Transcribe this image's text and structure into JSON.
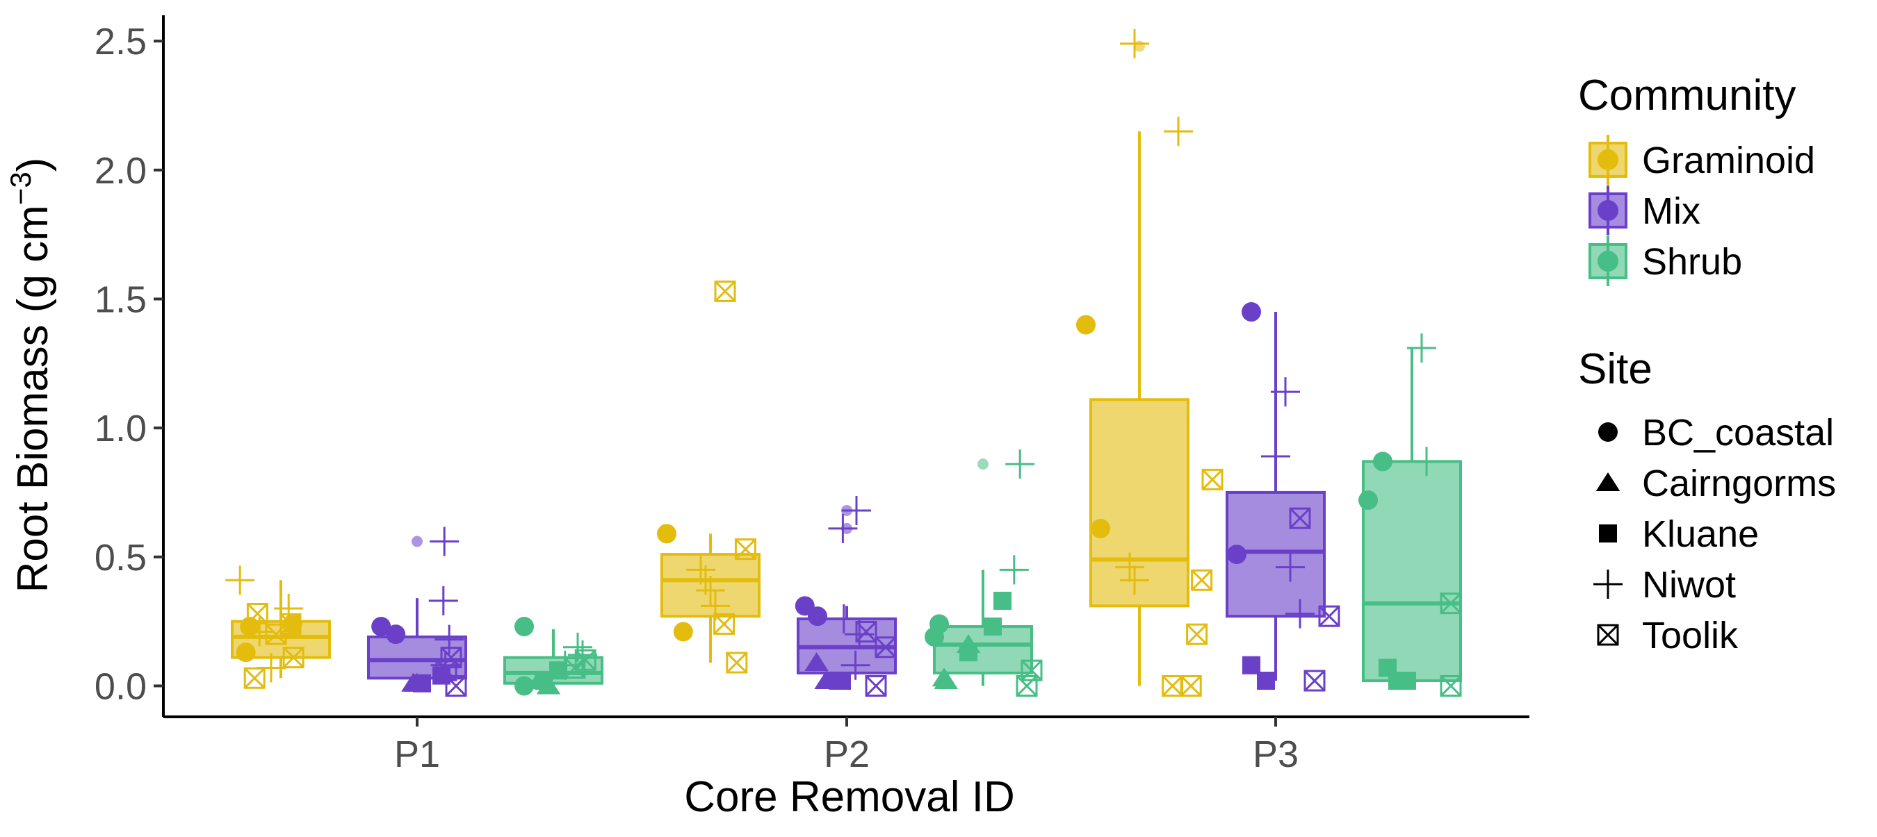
{
  "chart_data": {
    "type": "boxplot",
    "xlabel": "Core Removal ID",
    "ylabel": "Root Biomass (g cm",
    "ylabel_sup": "−3",
    "ylabel_close": ")",
    "categories": [
      "P1",
      "P2",
      "P3"
    ],
    "ylim": [
      -0.12,
      2.6
    ],
    "yticks": [
      {
        "value": 0.0,
        "label": "0.0"
      },
      {
        "value": 0.5,
        "label": "0.5"
      },
      {
        "value": 1.0,
        "label": "1.0"
      },
      {
        "value": 1.5,
        "label": "1.5"
      },
      {
        "value": 2.0,
        "label": "2.0"
      },
      {
        "value": 2.5,
        "label": "2.5"
      }
    ],
    "grid": false,
    "legend": {
      "placement": "right",
      "community_title": "Community",
      "site_title": "Site",
      "communities": [
        {
          "name": "Graminoid",
          "color": "#E3BC0D"
        },
        {
          "name": "Mix",
          "color": "#6A40C9"
        },
        {
          "name": "Shrub",
          "color": "#47BE85"
        }
      ],
      "sites": [
        {
          "name": "BC_coastal",
          "shape": "circle"
        },
        {
          "name": "Cairngorms",
          "shape": "triangle"
        },
        {
          "name": "Kluane",
          "shape": "square"
        },
        {
          "name": "Niwot",
          "shape": "plus"
        },
        {
          "name": "Toolik",
          "shape": "boxcross"
        }
      ]
    },
    "boxes": [
      {
        "category": "P1",
        "community": "Graminoid",
        "q1": 0.11,
        "median": 0.19,
        "q3": 0.25,
        "whisker_low": 0.03,
        "whisker_high": 0.41
      },
      {
        "category": "P1",
        "community": "Mix",
        "q1": 0.03,
        "median": 0.1,
        "q3": 0.19,
        "whisker_low": 0.0,
        "whisker_high": 0.34
      },
      {
        "category": "P1",
        "community": "Shrub",
        "q1": 0.01,
        "median": 0.05,
        "q3": 0.11,
        "whisker_low": 0.0,
        "whisker_high": 0.22
      },
      {
        "category": "P2",
        "community": "Graminoid",
        "q1": 0.27,
        "median": 0.41,
        "q3": 0.51,
        "whisker_low": 0.09,
        "whisker_high": 0.59
      },
      {
        "category": "P2",
        "community": "Mix",
        "q1": 0.05,
        "median": 0.15,
        "q3": 0.26,
        "whisker_low": 0.0,
        "whisker_high": 0.31
      },
      {
        "category": "P2",
        "community": "Shrub",
        "q1": 0.05,
        "median": 0.16,
        "q3": 0.23,
        "whisker_low": 0.0,
        "whisker_high": 0.45
      },
      {
        "category": "P3",
        "community": "Graminoid",
        "q1": 0.31,
        "median": 0.49,
        "q3": 1.11,
        "whisker_low": 0.0,
        "whisker_high": 2.15
      },
      {
        "category": "P3",
        "community": "Mix",
        "q1": 0.27,
        "median": 0.52,
        "q3": 0.75,
        "whisker_low": 0.02,
        "whisker_high": 1.45
      },
      {
        "category": "P3",
        "community": "Shrub",
        "q1": 0.02,
        "median": 0.32,
        "q3": 0.87,
        "whisker_low": 0.0,
        "whisker_high": 1.31
      }
    ],
    "outliers": [
      {
        "category": "P2",
        "community": "Mix",
        "y": 0.61
      },
      {
        "category": "P2",
        "community": "Mix",
        "y": 0.68
      },
      {
        "category": "P2",
        "community": "Shrub",
        "y": 0.86
      },
      {
        "category": "P1",
        "community": "Mix",
        "y": 0.56
      },
      {
        "category": "P3",
        "community": "Graminoid",
        "y": 2.48
      }
    ],
    "points": [
      {
        "category": "P1",
        "community": "Graminoid",
        "site": "BC_coastal",
        "y": 0.13,
        "jitter": -0.36
      },
      {
        "category": "P1",
        "community": "Graminoid",
        "site": "BC_coastal",
        "y": 0.23,
        "jitter": -0.32
      },
      {
        "category": "P1",
        "community": "Graminoid",
        "site": "BC_coastal",
        "y": 0.24,
        "jitter": 0.12
      },
      {
        "category": "P1",
        "community": "Graminoid",
        "site": "Niwot",
        "y": 0.41,
        "jitter": -0.42
      },
      {
        "category": "P1",
        "community": "Graminoid",
        "site": "Niwot",
        "y": 0.21,
        "jitter": -0.22
      },
      {
        "category": "P1",
        "community": "Graminoid",
        "site": "Niwot",
        "y": 0.07,
        "jitter": -0.1
      },
      {
        "category": "P1",
        "community": "Graminoid",
        "site": "Niwot",
        "y": 0.3,
        "jitter": 0.08
      },
      {
        "category": "P1",
        "community": "Graminoid",
        "site": "Toolik",
        "y": 0.03,
        "jitter": -0.27
      },
      {
        "category": "P1",
        "community": "Graminoid",
        "site": "Toolik",
        "y": 0.28,
        "jitter": -0.24
      },
      {
        "category": "P1",
        "community": "Graminoid",
        "site": "Toolik",
        "y": 0.2,
        "jitter": -0.05
      },
      {
        "category": "P1",
        "community": "Graminoid",
        "site": "Toolik",
        "y": 0.24,
        "jitter": 0.1
      },
      {
        "category": "P1",
        "community": "Graminoid",
        "site": "Toolik",
        "y": 0.11,
        "jitter": 0.13
      },
      {
        "category": "P1",
        "community": "Mix",
        "site": "BC_coastal",
        "y": 0.23,
        "jitter": -0.37
      },
      {
        "category": "P1",
        "community": "Mix",
        "site": "BC_coastal",
        "y": 0.2,
        "jitter": -0.22
      },
      {
        "category": "P1",
        "community": "Mix",
        "site": "Cairngorms",
        "y": 0.01,
        "jitter": -0.04
      },
      {
        "category": "P1",
        "community": "Mix",
        "site": "Cairngorms",
        "y": 0.01,
        "jitter": 0.0
      },
      {
        "category": "P1",
        "community": "Mix",
        "site": "Kluane",
        "y": 0.01,
        "jitter": 0.05
      },
      {
        "category": "P1",
        "community": "Mix",
        "site": "Kluane",
        "y": 0.04,
        "jitter": 0.25
      },
      {
        "category": "P1",
        "community": "Mix",
        "site": "Niwot",
        "y": 0.56,
        "jitter": 0.28
      },
      {
        "category": "P1",
        "community": "Mix",
        "site": "Niwot",
        "y": 0.33,
        "jitter": 0.27
      },
      {
        "category": "P1",
        "community": "Mix",
        "site": "Niwot",
        "y": 0.18,
        "jitter": 0.33
      },
      {
        "category": "P1",
        "community": "Mix",
        "site": "Niwot",
        "y": 0.08,
        "jitter": 0.29
      },
      {
        "category": "P1",
        "community": "Mix",
        "site": "Toolik",
        "y": 0.11,
        "jitter": 0.35
      },
      {
        "category": "P1",
        "community": "Mix",
        "site": "Toolik",
        "y": 0.06,
        "jitter": 0.3
      },
      {
        "category": "P1",
        "community": "Mix",
        "site": "Toolik",
        "y": 0.0,
        "jitter": 0.4
      },
      {
        "category": "P1",
        "community": "Shrub",
        "site": "BC_coastal",
        "y": 0.23,
        "jitter": -0.3
      },
      {
        "category": "P1",
        "community": "Shrub",
        "site": "BC_coastal",
        "y": 0.0,
        "jitter": -0.3
      },
      {
        "category": "P1",
        "community": "Shrub",
        "site": "Cairngorms",
        "y": 0.02,
        "jitter": -0.15
      },
      {
        "category": "P1",
        "community": "Shrub",
        "site": "Cairngorms",
        "y": 0.0,
        "jitter": -0.05
      },
      {
        "category": "P1",
        "community": "Shrub",
        "site": "Kluane",
        "y": 0.02,
        "jitter": -0.1
      },
      {
        "category": "P1",
        "community": "Shrub",
        "site": "Kluane",
        "y": 0.06,
        "jitter": 0.05
      },
      {
        "category": "P1",
        "community": "Shrub",
        "site": "Niwot",
        "y": 0.15,
        "jitter": 0.25
      },
      {
        "category": "P1",
        "community": "Shrub",
        "site": "Niwot",
        "y": 0.12,
        "jitter": 0.3
      },
      {
        "category": "P1",
        "community": "Shrub",
        "site": "Niwot",
        "y": 0.08,
        "jitter": 0.12
      },
      {
        "category": "P1",
        "community": "Shrub",
        "site": "Toolik",
        "y": 0.1,
        "jitter": 0.33
      },
      {
        "category": "P1",
        "community": "Shrub",
        "site": "Toolik",
        "y": 0.07,
        "jitter": 0.22
      },
      {
        "category": "P2",
        "community": "Graminoid",
        "site": "BC_coastal",
        "y": 0.59,
        "jitter": -0.45
      },
      {
        "category": "P2",
        "community": "Graminoid",
        "site": "BC_coastal",
        "y": 0.21,
        "jitter": -0.28
      },
      {
        "category": "P2",
        "community": "Graminoid",
        "site": "Niwot",
        "y": 0.45,
        "jitter": -0.1
      },
      {
        "category": "P2",
        "community": "Graminoid",
        "site": "Niwot",
        "y": 0.41,
        "jitter": -0.05
      },
      {
        "category": "P2",
        "community": "Graminoid",
        "site": "Niwot",
        "y": 0.37,
        "jitter": 0.0
      },
      {
        "category": "P2",
        "community": "Graminoid",
        "site": "Niwot",
        "y": 0.31,
        "jitter": 0.05
      },
      {
        "category": "P2",
        "community": "Graminoid",
        "site": "Toolik",
        "y": 1.53,
        "jitter": 0.15
      },
      {
        "category": "P2",
        "community": "Graminoid",
        "site": "Toolik",
        "y": 0.53,
        "jitter": 0.36
      },
      {
        "category": "P2",
        "community": "Graminoid",
        "site": "Toolik",
        "y": 0.24,
        "jitter": 0.14
      },
      {
        "category": "P2",
        "community": "Graminoid",
        "site": "Toolik",
        "y": 0.09,
        "jitter": 0.27
      },
      {
        "category": "P2",
        "community": "Mix",
        "site": "BC_coastal",
        "y": 0.31,
        "jitter": -0.43
      },
      {
        "category": "P2",
        "community": "Mix",
        "site": "BC_coastal",
        "y": 0.27,
        "jitter": -0.3
      },
      {
        "category": "P2",
        "community": "Mix",
        "site": "Cairngorms",
        "y": 0.09,
        "jitter": -0.31
      },
      {
        "category": "P2",
        "community": "Mix",
        "site": "Cairngorms",
        "y": 0.02,
        "jitter": -0.21
      },
      {
        "category": "P2",
        "community": "Mix",
        "site": "Kluane",
        "y": 0.02,
        "jitter": -0.05
      },
      {
        "category": "P2",
        "community": "Mix",
        "site": "Kluane",
        "y": 0.02,
        "jitter": -0.09
      },
      {
        "category": "P2",
        "community": "Mix",
        "site": "Niwot",
        "y": 0.68,
        "jitter": 0.1
      },
      {
        "category": "P2",
        "community": "Mix",
        "site": "Niwot",
        "y": 0.61,
        "jitter": -0.04
      },
      {
        "category": "P2",
        "community": "Mix",
        "site": "Niwot",
        "y": 0.26,
        "jitter": -0.03
      },
      {
        "category": "P2",
        "community": "Mix",
        "site": "Niwot",
        "y": 0.2,
        "jitter": 0.13
      },
      {
        "category": "P2",
        "community": "Mix",
        "site": "Niwot",
        "y": 0.08,
        "jitter": 0.09
      },
      {
        "category": "P2",
        "community": "Mix",
        "site": "Toolik",
        "y": 0.21,
        "jitter": 0.2
      },
      {
        "category": "P2",
        "community": "Mix",
        "site": "Toolik",
        "y": 0.15,
        "jitter": 0.4
      },
      {
        "category": "P2",
        "community": "Mix",
        "site": "Toolik",
        "y": 0.0,
        "jitter": 0.3
      },
      {
        "category": "P2",
        "community": "Shrub",
        "site": "BC_coastal",
        "y": 0.24,
        "jitter": -0.45
      },
      {
        "category": "P2",
        "community": "Shrub",
        "site": "BC_coastal",
        "y": 0.19,
        "jitter": -0.5
      },
      {
        "category": "P2",
        "community": "Shrub",
        "site": "Cairngorms",
        "y": 0.03,
        "jitter": -0.4
      },
      {
        "category": "P2",
        "community": "Shrub",
        "site": "Cairngorms",
        "y": 0.02,
        "jitter": -0.38
      },
      {
        "category": "P2",
        "community": "Shrub",
        "site": "Cairngorms",
        "y": 0.16,
        "jitter": -0.15
      },
      {
        "category": "P2",
        "community": "Shrub",
        "site": "Kluane",
        "y": 0.33,
        "jitter": 0.2
      },
      {
        "category": "P2",
        "community": "Shrub",
        "site": "Kluane",
        "y": 0.23,
        "jitter": 0.1
      },
      {
        "category": "P2",
        "community": "Shrub",
        "site": "Kluane",
        "y": 0.13,
        "jitter": -0.15
      },
      {
        "category": "P2",
        "community": "Shrub",
        "site": "Niwot",
        "y": 0.86,
        "jitter": 0.38
      },
      {
        "category": "P2",
        "community": "Shrub",
        "site": "Niwot",
        "y": 0.45,
        "jitter": 0.32
      },
      {
        "category": "P2",
        "community": "Shrub",
        "site": "Toolik",
        "y": 0.06,
        "jitter": 0.5
      },
      {
        "category": "P2",
        "community": "Shrub",
        "site": "Toolik",
        "y": 0.0,
        "jitter": 0.45
      },
      {
        "category": "P3",
        "community": "Graminoid",
        "site": "BC_coastal",
        "y": 1.4,
        "jitter": -0.55
      },
      {
        "category": "P3",
        "community": "Graminoid",
        "site": "BC_coastal",
        "y": 0.61,
        "jitter": -0.4
      },
      {
        "category": "P3",
        "community": "Graminoid",
        "site": "Niwot",
        "y": 2.49,
        "jitter": -0.05
      },
      {
        "category": "P3",
        "community": "Graminoid",
        "site": "Niwot",
        "y": 2.15,
        "jitter": 0.4
      },
      {
        "category": "P3",
        "community": "Graminoid",
        "site": "Niwot",
        "y": 0.46,
        "jitter": -0.1
      },
      {
        "category": "P3",
        "community": "Graminoid",
        "site": "Niwot",
        "y": 0.41,
        "jitter": -0.05
      },
      {
        "category": "P3",
        "community": "Graminoid",
        "site": "Toolik",
        "y": 0.8,
        "jitter": 0.75
      },
      {
        "category": "P3",
        "community": "Graminoid",
        "site": "Toolik",
        "y": 0.41,
        "jitter": 0.64
      },
      {
        "category": "P3",
        "community": "Graminoid",
        "site": "Toolik",
        "y": 0.2,
        "jitter": 0.59
      },
      {
        "category": "P3",
        "community": "Graminoid",
        "site": "Toolik",
        "y": 0.0,
        "jitter": 0.34
      },
      {
        "category": "P3",
        "community": "Graminoid",
        "site": "Toolik",
        "y": 0.0,
        "jitter": 0.53
      },
      {
        "category": "P3",
        "community": "Mix",
        "site": "BC_coastal",
        "y": 1.45,
        "jitter": -0.25
      },
      {
        "category": "P3",
        "community": "Mix",
        "site": "BC_coastal",
        "y": 0.51,
        "jitter": -0.4
      },
      {
        "category": "P3",
        "community": "Mix",
        "site": "Kluane",
        "y": 0.08,
        "jitter": -0.25
      },
      {
        "category": "P3",
        "community": "Mix",
        "site": "Kluane",
        "y": 0.02,
        "jitter": -0.1
      },
      {
        "category": "P3",
        "community": "Mix",
        "site": "Niwot",
        "y": 1.14,
        "jitter": 0.1
      },
      {
        "category": "P3",
        "community": "Mix",
        "site": "Niwot",
        "y": 0.89,
        "jitter": 0.0
      },
      {
        "category": "P3",
        "community": "Mix",
        "site": "Niwot",
        "y": 0.46,
        "jitter": 0.15
      },
      {
        "category": "P3",
        "community": "Mix",
        "site": "Niwot",
        "y": 0.28,
        "jitter": 0.25
      },
      {
        "category": "P3",
        "community": "Mix",
        "site": "Toolik",
        "y": 0.65,
        "jitter": 0.25
      },
      {
        "category": "P3",
        "community": "Mix",
        "site": "Toolik",
        "y": 0.27,
        "jitter": 0.55
      },
      {
        "category": "P3",
        "community": "Mix",
        "site": "Toolik",
        "y": 0.02,
        "jitter": 0.4
      },
      {
        "category": "P3",
        "community": "Shrub",
        "site": "BC_coastal",
        "y": 0.87,
        "jitter": -0.3
      },
      {
        "category": "P3",
        "community": "Shrub",
        "site": "BC_coastal",
        "y": 0.72,
        "jitter": -0.45
      },
      {
        "category": "P3",
        "community": "Shrub",
        "site": "Kluane",
        "y": 0.07,
        "jitter": -0.25
      },
      {
        "category": "P3",
        "community": "Shrub",
        "site": "Kluane",
        "y": 0.02,
        "jitter": -0.15
      },
      {
        "category": "P3",
        "community": "Shrub",
        "site": "Kluane",
        "y": 0.02,
        "jitter": -0.05
      },
      {
        "category": "P3",
        "community": "Shrub",
        "site": "Niwot",
        "y": 1.31,
        "jitter": 0.1
      },
      {
        "category": "P3",
        "community": "Shrub",
        "site": "Niwot",
        "y": 0.87,
        "jitter": 0.15
      },
      {
        "category": "P3",
        "community": "Shrub",
        "site": "Toolik",
        "y": 0.32,
        "jitter": 0.4
      },
      {
        "category": "P3",
        "community": "Shrub",
        "site": "Toolik",
        "y": 0.0,
        "jitter": 0.4
      }
    ]
  }
}
